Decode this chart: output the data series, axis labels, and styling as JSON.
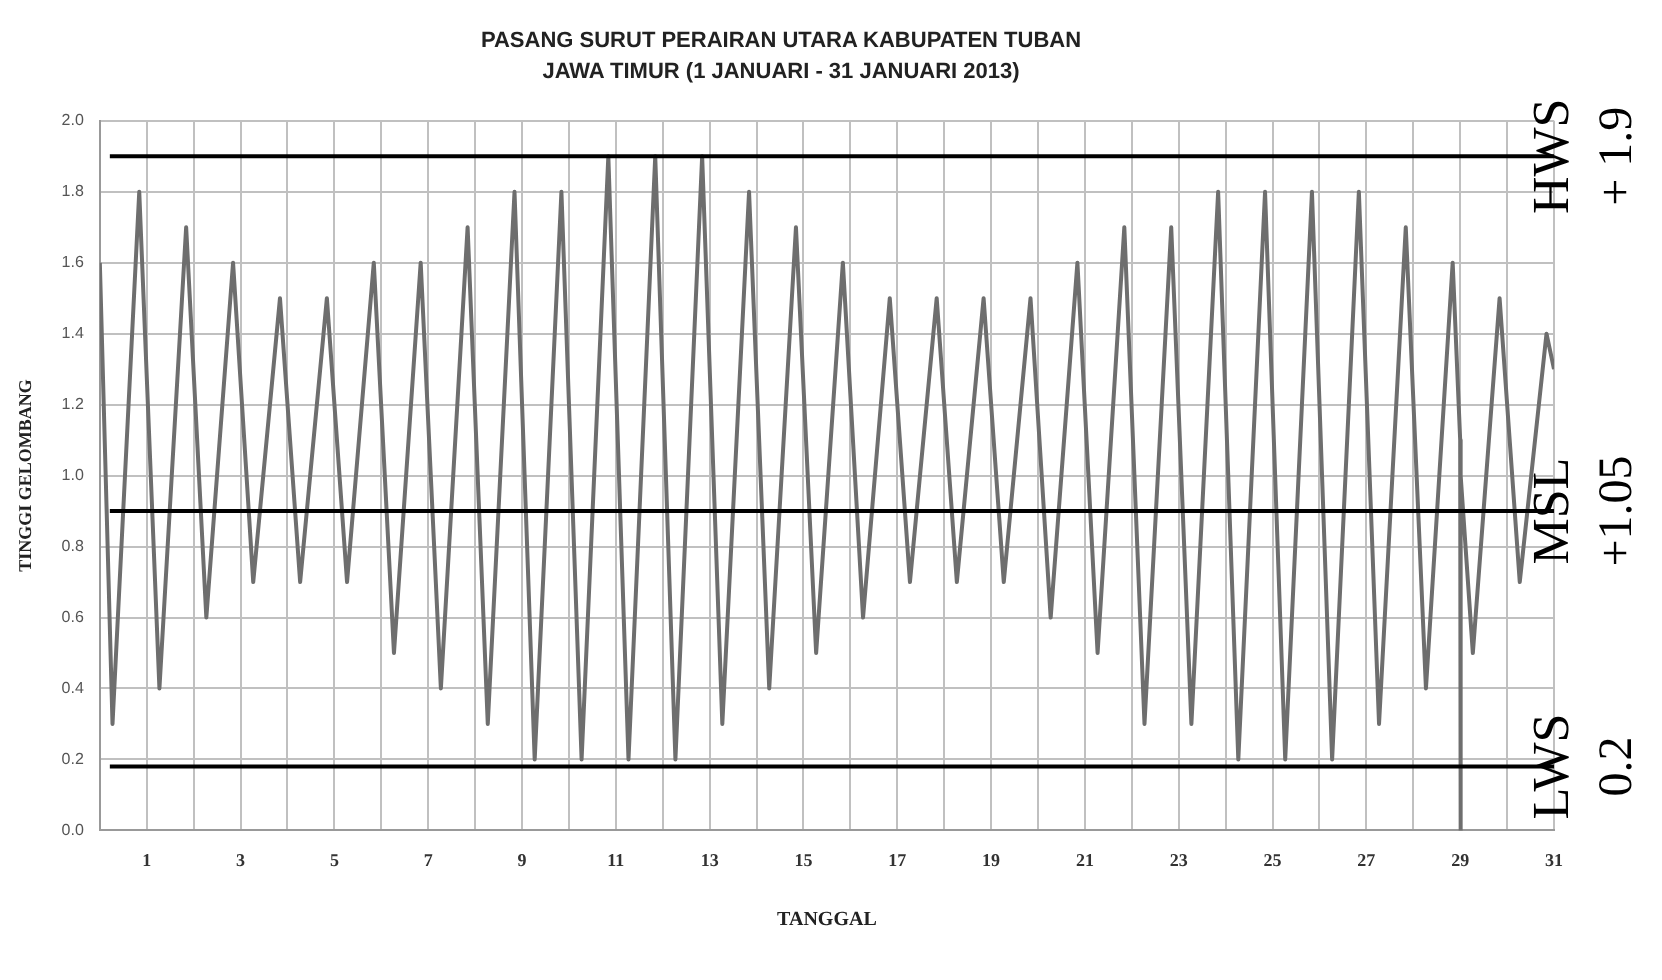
{
  "chart_data": {
    "type": "line",
    "title": "PASANG SURUT PERAIRAN UTARA KABUPATEN TUBAN",
    "subtitle": "JAWA TIMUR (1 JANUARI - 31 JANUARI 2013)",
    "xlabel": "TANGGAL",
    "ylabel": "TINGGI GELOMBANG",
    "xlim": [
      0,
      31
    ],
    "xticks": [
      {
        "value": 0,
        "label": null
      },
      1,
      {
        "value": 2,
        "label": null
      },
      3,
      {
        "value": 4,
        "label": null
      },
      5,
      {
        "value": 6,
        "label": null
      },
      7,
      {
        "value": 8,
        "label": null
      },
      9,
      {
        "value": 10,
        "label": null
      },
      11,
      {
        "value": 12,
        "label": null
      },
      13,
      {
        "value": 14,
        "label": null
      },
      15,
      {
        "value": 16,
        "label": null
      },
      17,
      {
        "value": 18,
        "label": null
      },
      19,
      {
        "value": 20,
        "label": null
      },
      21,
      {
        "value": 22,
        "label": null
      },
      23,
      {
        "value": 24,
        "label": null
      },
      25,
      {
        "value": 26,
        "label": null
      },
      27,
      {
        "value": 28,
        "label": null
      },
      29,
      {
        "value": 30,
        "label": null
      },
      31
    ],
    "ylim": [
      0,
      2
    ],
    "yticks": [
      {
        "value": 0,
        "label": "0.0"
      },
      0.2,
      0.4,
      0.6,
      0.8,
      {
        "value": 1,
        "label": "1.0"
      },
      1.2,
      1.4,
      1.6,
      1.8,
      {
        "value": 2,
        "label": "2.0"
      }
    ],
    "grid": true,
    "legend": false,
    "marker": "none",
    "line_style": "solid",
    "series": [
      {
        "color": "#6e6e6e",
        "x": [
          0,
          0.27,
          0.84,
          1.27,
          1.84,
          2.27,
          2.84,
          3.27,
          3.84,
          4.27,
          4.84,
          5.27,
          5.84,
          6.27,
          6.84,
          7.27,
          7.84,
          8.27,
          8.84,
          9.27,
          9.84,
          10.27,
          10.84,
          11.27,
          11.84,
          12.27,
          12.84,
          13.27,
          13.84,
          14.27,
          14.84,
          15.27,
          15.84,
          16.27,
          16.84,
          17.27,
          17.84,
          18.27,
          18.84,
          19.27,
          19.84,
          20.27,
          20.84,
          21.27,
          21.84,
          22.27,
          22.84,
          23.27,
          23.84,
          24.27,
          24.84,
          25.27,
          25.84,
          26.27,
          26.84,
          27.27,
          27.84,
          28.27,
          28.84,
          29.0,
          29.0,
          29.02,
          29.27,
          29.84,
          30.27,
          30.84,
          31
        ],
        "values": [
          1.6,
          0.3,
          1.8,
          0.4,
          1.7,
          0.6,
          1.6,
          0.7,
          1.5,
          0.7,
          1.5,
          0.7,
          1.6,
          0.5,
          1.6,
          0.4,
          1.7,
          0.3,
          1.8,
          0.2,
          1.8,
          0.2,
          1.9,
          0.2,
          1.9,
          0.2,
          1.9,
          0.3,
          1.8,
          0.4,
          1.7,
          0.5,
          1.6,
          0.6,
          1.5,
          0.7,
          1.5,
          0.7,
          1.5,
          0.7,
          1.5,
          0.6,
          1.6,
          0.5,
          1.7,
          0.3,
          1.7,
          0.3,
          1.8,
          0.2,
          1.8,
          0.2,
          1.8,
          0.2,
          1.8,
          0.3,
          1.7,
          0.4,
          1.6,
          1.1,
          0.0,
          1.0,
          0.5,
          1.5,
          0.7,
          1.4,
          1.3
        ]
      }
    ],
    "ref_lines": [
      {
        "axis": "y",
        "value": 1.9,
        "label": "HWS",
        "color": "#000000"
      },
      {
        "axis": "y",
        "value": 0.9,
        "label": "MSL",
        "color": "#000000"
      },
      {
        "axis": "y",
        "value": 0.18,
        "label": "LWS",
        "color": "#000000"
      }
    ],
    "annotations": [
      "+ 1.9",
      "+1.05",
      "0.2"
    ]
  }
}
